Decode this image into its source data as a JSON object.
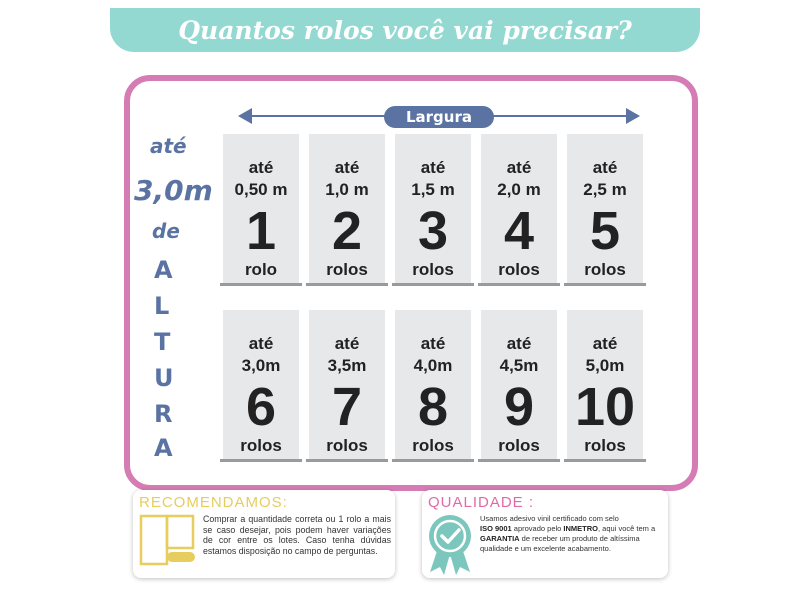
{
  "header": {
    "title": "Quantos rolos você vai precisar?"
  },
  "width_axis": {
    "label": "Largura"
  },
  "height_side": {
    "ate": "até",
    "value": "3,0m",
    "de": "de",
    "letters": [
      "A",
      "L",
      "T",
      "U",
      "R",
      "A"
    ]
  },
  "top_row": [
    {
      "ate": "até",
      "limit": "0,50 m",
      "count": "1",
      "unit": "rolo"
    },
    {
      "ate": "até",
      "limit": "1,0 m",
      "count": "2",
      "unit": "rolos"
    },
    {
      "ate": "até",
      "limit": "1,5 m",
      "count": "3",
      "unit": "rolos"
    },
    {
      "ate": "até",
      "limit": "2,0 m",
      "count": "4",
      "unit": "rolos"
    },
    {
      "ate": "até",
      "limit": "2,5 m",
      "count": "5",
      "unit": "rolos"
    }
  ],
  "bottom_row": [
    {
      "ate": "até",
      "limit": "3,0m",
      "count": "6",
      "unit": "rolos"
    },
    {
      "ate": "até",
      "limit": "3,5m",
      "count": "7",
      "unit": "rolos"
    },
    {
      "ate": "até",
      "limit": "4,0m",
      "count": "8",
      "unit": "rolos"
    },
    {
      "ate": "até",
      "limit": "4,5m",
      "count": "9",
      "unit": "rolos"
    },
    {
      "ate": "até",
      "limit": "5,0m",
      "count": "10",
      "unit": "rolos"
    }
  ],
  "recommend": {
    "title": "RECOMENDAMOS:",
    "text": "Comprar a quantidade correta ou 1 rolo a mais se caso desejar, pois podem haver variações de cor entre os lotes. Caso tenha dúvidas estamos disposição no campo de perguntas."
  },
  "quality": {
    "title": "QUALIDADE :",
    "p1": "Usamos adesivo vinil certificado com selo",
    "b1": "ISO 9001",
    "p2": " aprovado pelo ",
    "b2": "INMETRO",
    "p3": ", aqui você tem a ",
    "b3": "GARANTIA",
    "p4": " de receber um produto de altíssima qualidade e um excelente acabamento."
  },
  "colors": {
    "teal": "#93d9d2",
    "pink": "#d57cb4",
    "navy": "#5a73a2",
    "gold": "#e7cd5e",
    "quality_title": "#e06aa8"
  },
  "icons": {
    "roll": "wallpaper-roll-icon",
    "badge": "quality-badge-icon"
  }
}
